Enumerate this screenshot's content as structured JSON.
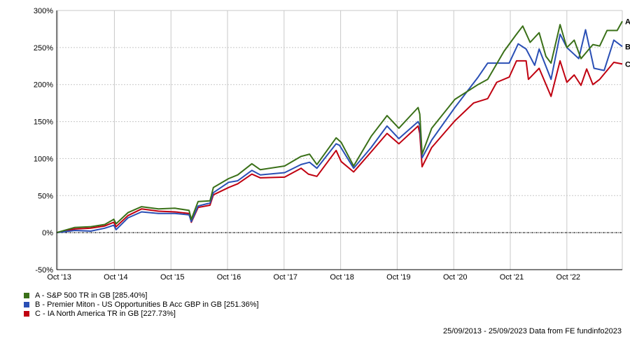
{
  "chart_data": {
    "type": "line",
    "title": "",
    "xlabel": "",
    "ylabel": "",
    "x_unit": "years since 25/09/2013",
    "xlim": [
      0,
      10
    ],
    "ylim": [
      -50,
      300
    ],
    "grid": true,
    "y_ticks": [
      -50,
      0,
      50,
      100,
      150,
      200,
      250,
      300
    ],
    "y_tick_labels": [
      "-50%",
      "0%",
      "50%",
      "100%",
      "150%",
      "200%",
      "250%",
      "300%"
    ],
    "x_ticks": [
      0.02,
      1.02,
      2.02,
      3.02,
      4.02,
      5.02,
      6.02,
      7.02,
      8.02,
      9.02
    ],
    "x_tick_labels": [
      "Oct '13",
      "Oct '14",
      "Oct '15",
      "Oct '16",
      "Oct '17",
      "Oct '18",
      "Oct '19",
      "Oct '20",
      "Oct '21",
      "Oct '22"
    ],
    "legend_position": "bottom-left",
    "series": [
      {
        "name": "A - S&P 500 TR in GB [285.40%]",
        "end_label": "A",
        "color": "#3a7018",
        "points": [
          [
            0,
            0
          ],
          [
            0.32,
            7
          ],
          [
            0.6,
            8
          ],
          [
            0.85,
            11
          ],
          [
            1.01,
            18
          ],
          [
            1.05,
            12
          ],
          [
            1.26,
            27
          ],
          [
            1.5,
            35
          ],
          [
            1.8,
            32
          ],
          [
            2.09,
            33
          ],
          [
            2.34,
            30
          ],
          [
            2.38,
            18
          ],
          [
            2.5,
            42
          ],
          [
            2.71,
            43
          ],
          [
            2.77,
            61
          ],
          [
            3.04,
            73
          ],
          [
            3.2,
            78
          ],
          [
            3.45,
            93
          ],
          [
            3.6,
            85
          ],
          [
            4.03,
            90
          ],
          [
            4.32,
            103
          ],
          [
            4.47,
            106
          ],
          [
            4.6,
            92
          ],
          [
            4.94,
            128
          ],
          [
            5.03,
            122
          ],
          [
            5.25,
            90
          ],
          [
            5.56,
            130
          ],
          [
            5.84,
            158
          ],
          [
            6.05,
            141
          ],
          [
            6.39,
            169
          ],
          [
            6.42,
            160
          ],
          [
            6.46,
            106
          ],
          [
            6.63,
            141
          ],
          [
            7.04,
            180
          ],
          [
            7.45,
            200
          ],
          [
            7.62,
            207
          ],
          [
            7.91,
            245
          ],
          [
            8.12,
            267
          ],
          [
            8.24,
            279
          ],
          [
            8.37,
            257
          ],
          [
            8.53,
            270
          ],
          [
            8.65,
            238
          ],
          [
            8.74,
            229
          ],
          [
            8.9,
            281
          ],
          [
            9.02,
            250
          ],
          [
            9.15,
            260
          ],
          [
            9.27,
            235
          ],
          [
            9.48,
            254
          ],
          [
            9.6,
            252
          ],
          [
            9.73,
            273
          ],
          [
            9.91,
            273
          ],
          [
            10,
            285.4
          ]
        ]
      },
      {
        "name": "B - Premier Miton - US Opportunities B Acc GBP in GB [251.36%]",
        "end_label": "B",
        "color": "#2a4fb5",
        "points": [
          [
            0,
            0
          ],
          [
            0.32,
            3
          ],
          [
            0.6,
            2
          ],
          [
            0.85,
            6
          ],
          [
            1.01,
            10
          ],
          [
            1.05,
            4
          ],
          [
            1.26,
            20
          ],
          [
            1.5,
            28
          ],
          [
            1.8,
            26
          ],
          [
            2.09,
            26
          ],
          [
            2.34,
            24
          ],
          [
            2.38,
            15
          ],
          [
            2.5,
            36
          ],
          [
            2.71,
            40
          ],
          [
            2.77,
            54
          ],
          [
            3.04,
            68
          ],
          [
            3.2,
            70
          ],
          [
            3.45,
            84
          ],
          [
            3.6,
            78
          ],
          [
            4.03,
            81
          ],
          [
            4.32,
            92
          ],
          [
            4.47,
            95
          ],
          [
            4.6,
            87
          ],
          [
            4.94,
            120
          ],
          [
            5.0,
            118
          ],
          [
            5.25,
            87
          ],
          [
            5.56,
            115
          ],
          [
            5.84,
            144
          ],
          [
            6.05,
            127
          ],
          [
            6.39,
            150
          ],
          [
            6.42,
            145
          ],
          [
            6.46,
            101
          ],
          [
            6.63,
            125
          ],
          [
            7.04,
            169
          ],
          [
            7.45,
            210
          ],
          [
            7.62,
            229
          ],
          [
            8.0,
            229
          ],
          [
            8.16,
            255
          ],
          [
            8.3,
            248
          ],
          [
            8.45,
            226
          ],
          [
            8.53,
            248
          ],
          [
            8.74,
            207
          ],
          [
            8.9,
            268
          ],
          [
            9.02,
            250
          ],
          [
            9.23,
            235
          ],
          [
            9.35,
            274
          ],
          [
            9.5,
            222
          ],
          [
            9.68,
            219
          ],
          [
            9.85,
            260
          ],
          [
            10,
            251.36
          ]
        ]
      },
      {
        "name": "C - IA North America TR in GB [227.73%]",
        "end_label": "C",
        "color": "#c00010",
        "points": [
          [
            0,
            0
          ],
          [
            0.32,
            5
          ],
          [
            0.6,
            6
          ],
          [
            0.85,
            9
          ],
          [
            1.01,
            14
          ],
          [
            1.05,
            8
          ],
          [
            1.26,
            23
          ],
          [
            1.5,
            32
          ],
          [
            1.8,
            29
          ],
          [
            2.09,
            28
          ],
          [
            2.34,
            26
          ],
          [
            2.38,
            14
          ],
          [
            2.5,
            34
          ],
          [
            2.71,
            37
          ],
          [
            2.77,
            51
          ],
          [
            3.04,
            61
          ],
          [
            3.2,
            66
          ],
          [
            3.45,
            79
          ],
          [
            3.6,
            74
          ],
          [
            4.03,
            75
          ],
          [
            4.32,
            87
          ],
          [
            4.45,
            79
          ],
          [
            4.6,
            76
          ],
          [
            4.94,
            111
          ],
          [
            5.03,
            96
          ],
          [
            5.25,
            82
          ],
          [
            5.56,
            109
          ],
          [
            5.84,
            134
          ],
          [
            6.05,
            120
          ],
          [
            6.39,
            144
          ],
          [
            6.42,
            134
          ],
          [
            6.46,
            89
          ],
          [
            6.63,
            115
          ],
          [
            7.04,
            151
          ],
          [
            7.37,
            175
          ],
          [
            7.62,
            181
          ],
          [
            7.78,
            203
          ],
          [
            8.0,
            210
          ],
          [
            8.13,
            232
          ],
          [
            8.3,
            232
          ],
          [
            8.34,
            207
          ],
          [
            8.53,
            222
          ],
          [
            8.74,
            184
          ],
          [
            8.9,
            232
          ],
          [
            9.02,
            203
          ],
          [
            9.15,
            213
          ],
          [
            9.27,
            199
          ],
          [
            9.37,
            221
          ],
          [
            9.48,
            200
          ],
          [
            9.6,
            207
          ],
          [
            9.73,
            219
          ],
          [
            9.85,
            230
          ],
          [
            10,
            227.73
          ]
        ]
      }
    ]
  },
  "footer": "25/09/2013 - 25/09/2023 Data from FE fundinfo2023"
}
